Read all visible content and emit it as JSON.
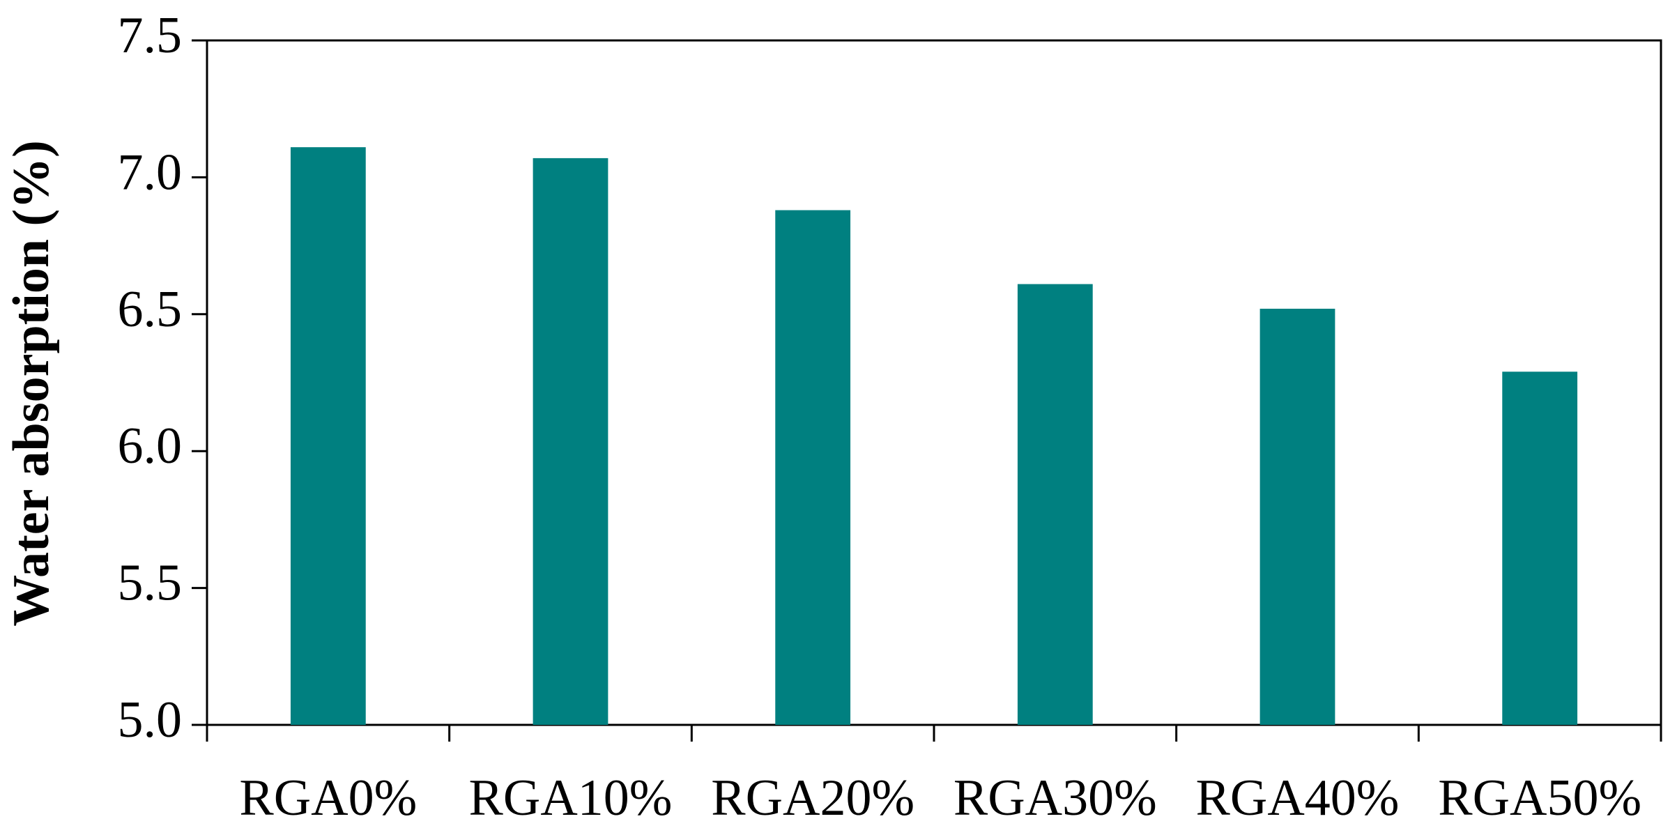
{
  "chart_data": {
    "type": "bar",
    "y_label": "Water absorption (%)",
    "categories": [
      "RGA0%",
      "RGA10%",
      "RGA20%",
      "RGA30%",
      "RGA40%",
      "RGA50%"
    ],
    "values": [
      7.11,
      7.07,
      6.88,
      6.61,
      6.52,
      6.29
    ],
    "color": "#008080",
    "ylim": [
      5.0,
      7.5
    ],
    "yticks": [
      {
        "value": 5.0,
        "label": "5.0"
      },
      5.5,
      {
        "value": 6.0,
        "label": "6.0"
      },
      6.5,
      {
        "value": 7.0,
        "label": "7.0"
      },
      7.5
    ]
  }
}
